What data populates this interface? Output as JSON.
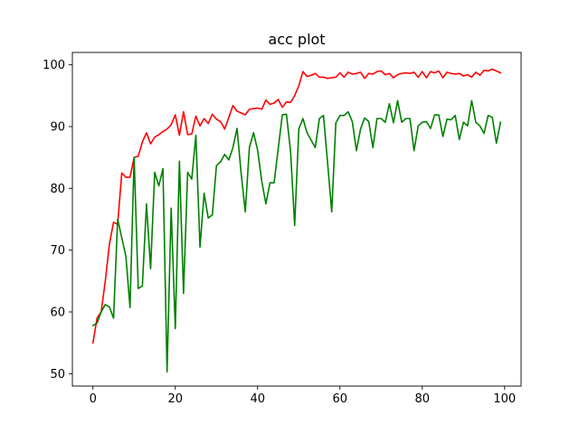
{
  "chart_data": {
    "type": "line",
    "title": "acc plot",
    "xlabel": "",
    "ylabel": "",
    "xlim": [
      -5,
      104
    ],
    "ylim": [
      48,
      102
    ],
    "xticks": [
      0,
      20,
      40,
      60,
      80,
      100
    ],
    "yticks": [
      50,
      60,
      70,
      80,
      90,
      100
    ],
    "grid": false,
    "legend": "none",
    "x": [
      0,
      1,
      2,
      3,
      4,
      5,
      6,
      7,
      8,
      9,
      10,
      11,
      12,
      13,
      14,
      15,
      16,
      17,
      18,
      19,
      20,
      21,
      22,
      23,
      24,
      25,
      26,
      27,
      28,
      29,
      30,
      31,
      32,
      33,
      34,
      35,
      36,
      37,
      38,
      39,
      40,
      41,
      42,
      43,
      44,
      45,
      46,
      47,
      48,
      49,
      50,
      51,
      52,
      53,
      54,
      55,
      56,
      57,
      58,
      59,
      60,
      61,
      62,
      63,
      64,
      65,
      66,
      67,
      68,
      69,
      70,
      71,
      72,
      73,
      74,
      75,
      76,
      77,
      78,
      79,
      80,
      81,
      82,
      83,
      84,
      85,
      86,
      87,
      88,
      89,
      90,
      91,
      92,
      93,
      94,
      95,
      96,
      97,
      98,
      99
    ],
    "series": [
      {
        "color": "#ff0000",
        "values": [
          55.0,
          59.0,
          60.0,
          65.0,
          71.0,
          74.5,
          74.2,
          82.5,
          81.8,
          81.8,
          85.0,
          85.2,
          87.5,
          89.0,
          87.2,
          88.3,
          88.7,
          89.2,
          89.6,
          90.3,
          91.9,
          88.6,
          92.4,
          88.7,
          88.8,
          91.7,
          90.1,
          91.3,
          90.5,
          92.0,
          91.2,
          90.8,
          89.6,
          91.5,
          93.4,
          92.5,
          92.2,
          91.9,
          92.8,
          92.9,
          93.0,
          92.8,
          94.3,
          93.6,
          93.8,
          94.4,
          93.1,
          94.0,
          93.9,
          95.0,
          96.6,
          98.9,
          98.1,
          98.3,
          98.6,
          98.0,
          98.0,
          97.8,
          97.9,
          98.0,
          98.7,
          98.0,
          98.8,
          98.5,
          98.6,
          98.8,
          97.8,
          98.6,
          98.5,
          98.9,
          99.0,
          98.4,
          98.6,
          97.9,
          98.4,
          98.6,
          98.7,
          98.6,
          98.8,
          98.0,
          98.9,
          97.9,
          98.9,
          98.7,
          99.0,
          97.9,
          98.8,
          98.6,
          98.5,
          98.6,
          98.2,
          98.4,
          98.0,
          98.8,
          98.3,
          99.1,
          99.0,
          99.3,
          99.0,
          98.7
        ]
      },
      {
        "color": "#008000",
        "values": [
          57.8,
          58.2,
          60.0,
          61.2,
          60.8,
          59.0,
          75.0,
          72.0,
          69.0,
          60.7,
          85.0,
          63.8,
          64.2,
          77.5,
          67.0,
          82.6,
          80.4,
          83.2,
          50.3,
          76.8,
          57.3,
          84.4,
          63.0,
          82.6,
          81.5,
          88.6,
          70.5,
          79.2,
          75.2,
          75.7,
          83.7,
          84.3,
          85.5,
          84.6,
          86.6,
          89.7,
          82.4,
          76.2,
          86.6,
          89.0,
          86.2,
          81.2,
          77.5,
          80.9,
          80.9,
          86.4,
          91.9,
          92.0,
          86.0,
          74.0,
          89.6,
          91.3,
          89.0,
          87.8,
          86.6,
          91.3,
          91.8,
          84.1,
          76.2,
          90.6,
          91.8,
          91.8,
          92.4,
          90.8,
          86.1,
          89.6,
          91.4,
          90.8,
          86.6,
          91.3,
          91.3,
          90.7,
          93.7,
          90.6,
          94.2,
          90.7,
          91.3,
          91.3,
          86.1,
          90.1,
          90.7,
          90.8,
          89.7,
          91.9,
          91.9,
          88.4,
          91.2,
          91.1,
          91.8,
          87.9,
          90.7,
          90.1,
          94.2,
          90.7,
          90.1,
          88.9,
          91.8,
          91.5,
          87.3,
          90.7
        ]
      }
    ]
  }
}
